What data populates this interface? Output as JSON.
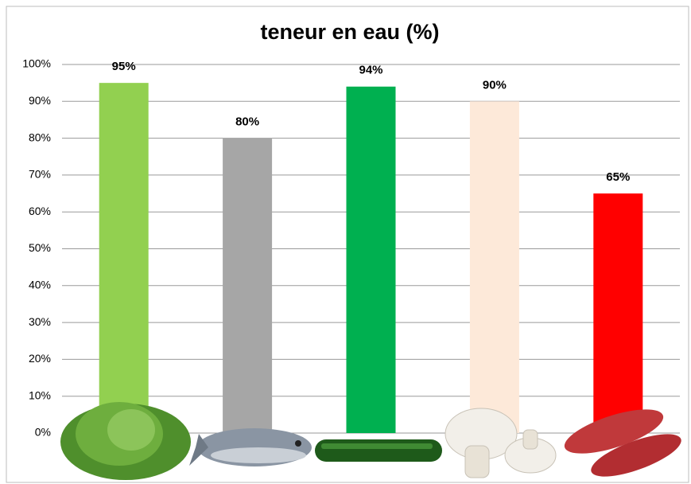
{
  "chart_data": {
    "type": "bar",
    "title": "teneur en eau (%)",
    "categories": [
      null,
      null,
      null,
      null,
      null
    ],
    "values": [
      95,
      80,
      94,
      90,
      65
    ],
    "value_labels": [
      "95%",
      "80%",
      "94%",
      "90%",
      "65%"
    ],
    "colors": [
      "#92d050",
      "#a6a6a6",
      "#00b050",
      "#fde9d9",
      "#ff0000"
    ],
    "ylim": [
      0,
      100
    ],
    "yticks": [
      {
        "value": 0,
        "label": "0%"
      },
      {
        "value": 10,
        "label": "10%"
      },
      {
        "value": 20,
        "label": "20%"
      },
      {
        "value": 30,
        "label": "30%"
      },
      {
        "value": 40,
        "label": "40%"
      },
      {
        "value": 50,
        "label": "50%"
      },
      {
        "value": 60,
        "label": "60%"
      },
      {
        "value": 70,
        "label": "70%"
      },
      {
        "value": 80,
        "label": "80%"
      },
      {
        "value": 90,
        "label": "90%"
      },
      {
        "value": 100,
        "label": "100%"
      }
    ],
    "grid": true
  }
}
